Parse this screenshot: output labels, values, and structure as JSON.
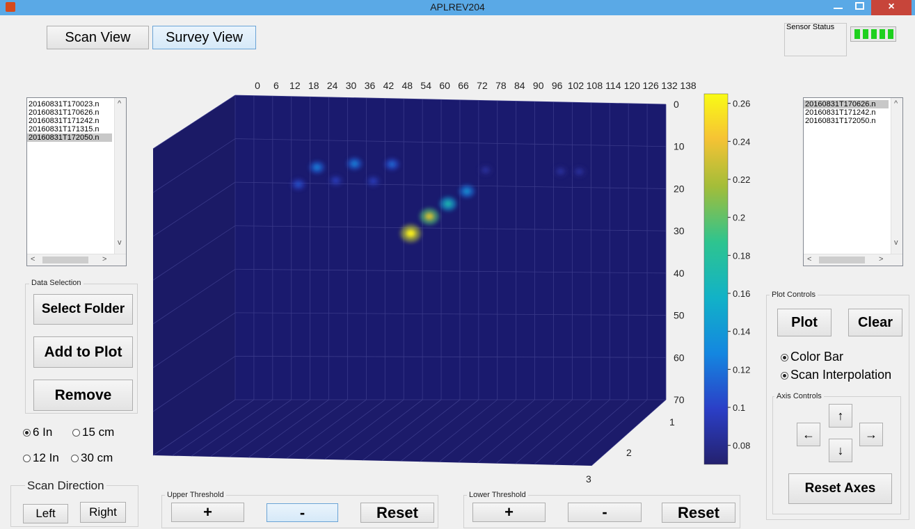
{
  "window": {
    "title": "APLREV204",
    "close_glyph": "×"
  },
  "view_tabs": {
    "scan_view": "Scan View",
    "survey_view": "Survey View"
  },
  "sensor_status": {
    "label": "Sensor Status",
    "bars": 5,
    "color": "#1ed01e"
  },
  "left_file_list": {
    "items": [
      "20160831T170023.n",
      "20160831T170626.n",
      "20160831T171242.n",
      "20160831T171315.n",
      "20160831T172050.n"
    ],
    "selected_index": 4
  },
  "right_file_list": {
    "items": [
      "20160831T170626.n",
      "20160831T171242.n",
      "20160831T172050.n"
    ],
    "selected_index": 0
  },
  "scroll_glyphs": {
    "up": "^",
    "down": "v",
    "left": "<",
    "right": ">"
  },
  "data_selection": {
    "title": "Data Selection",
    "select_folder": "Select Folder",
    "add_to_plot": "Add to Plot",
    "remove": "Remove"
  },
  "spacing_options": {
    "opt_6in": "6 In",
    "opt_15cm": "15 cm",
    "opt_12in": "12 In",
    "opt_30cm": "30 cm",
    "selected": "6 In"
  },
  "scan_direction": {
    "title": "Scan Direction",
    "left": "Left",
    "right": "Right"
  },
  "upper_threshold": {
    "title": "Upper Threshold",
    "plus": "+",
    "minus": "-",
    "reset": "Reset"
  },
  "lower_threshold": {
    "title": "Lower Threshold",
    "plus": "+",
    "minus": "-",
    "reset": "Reset"
  },
  "plot_controls": {
    "title": "Plot Controls",
    "plot": "Plot",
    "clear": "Clear",
    "color_bar": "Color Bar",
    "scan_interpolation": "Scan Interpolation"
  },
  "axis_controls": {
    "title": "Axis Controls",
    "up": "↑",
    "down": "↓",
    "left": "←",
    "right": "→",
    "reset_axes": "Reset Axes"
  },
  "plot": {
    "x_ticks": [
      "0",
      "6",
      "12",
      "18",
      "24",
      "30",
      "36",
      "42",
      "48",
      "54",
      "60",
      "66",
      "72",
      "78",
      "84",
      "90",
      "96",
      "102",
      "108",
      "114",
      "120",
      "126",
      "132",
      "138"
    ],
    "y_ticks": [
      "0",
      "10",
      "20",
      "30",
      "40",
      "50",
      "60",
      "70"
    ],
    "z_ticks": [
      "1",
      "2",
      "3"
    ],
    "colorbar_ticks": [
      "0.26",
      "0.24",
      "0.22",
      "0.2",
      "0.18",
      "0.16",
      "0.14",
      "0.12",
      "0.1",
      "0.08"
    ],
    "colorbar_range": [
      0.07,
      0.265
    ],
    "background_color": "#1a1a6e",
    "hotspots": [
      {
        "x": 54,
        "y": 30,
        "value": 0.26
      },
      {
        "x": 60,
        "y": 26,
        "value": 0.23
      },
      {
        "x": 66,
        "y": 23,
        "value": 0.17
      },
      {
        "x": 72,
        "y": 20,
        "value": 0.14
      },
      {
        "x": 24,
        "y": 15,
        "value": 0.13
      },
      {
        "x": 36,
        "y": 14,
        "value": 0.13
      },
      {
        "x": 48,
        "y": 14,
        "value": 0.12
      },
      {
        "x": 18,
        "y": 19,
        "value": 0.11
      },
      {
        "x": 30,
        "y": 18,
        "value": 0.1
      },
      {
        "x": 42,
        "y": 18,
        "value": 0.1
      },
      {
        "x": 78,
        "y": 15,
        "value": 0.09
      },
      {
        "x": 102,
        "y": 15,
        "value": 0.09
      },
      {
        "x": 108,
        "y": 15,
        "value": 0.09
      }
    ]
  }
}
